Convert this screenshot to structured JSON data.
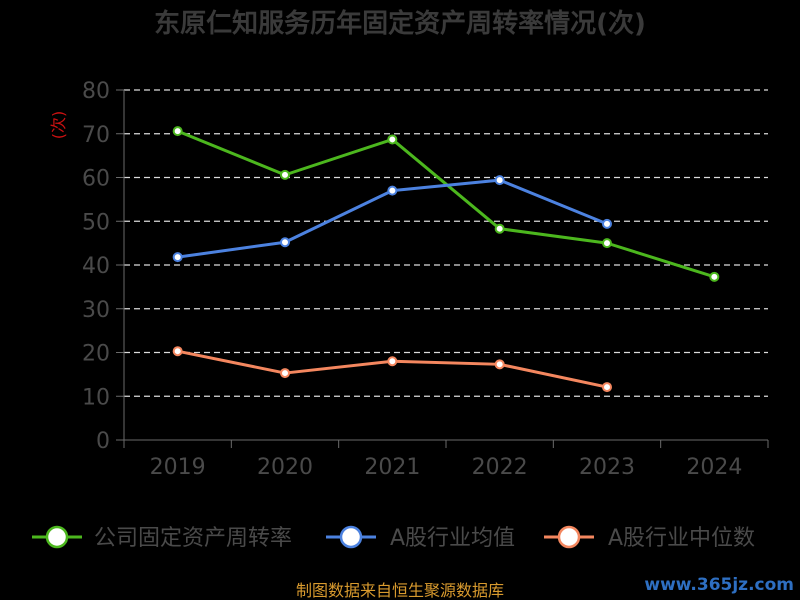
{
  "chart_data": {
    "type": "line",
    "title": "东原仁知服务历年固定资产周转率情况(次)",
    "ylabel": "(次)",
    "categories": [
      "2019",
      "2020",
      "2021",
      "2022",
      "2023",
      "2024"
    ],
    "ylim": [
      0,
      80
    ],
    "yticks": [
      0,
      10,
      20,
      30,
      40,
      50,
      60,
      70,
      80
    ],
    "grid": "dashed horizontal",
    "legend_position": "bottom",
    "series": [
      {
        "name": "公司固定资产周转率",
        "color": "#4cb71e",
        "values": [
          70.6,
          60.6,
          68.7,
          48.3,
          45.0,
          37.3
        ]
      },
      {
        "name": "A股行业均值",
        "color": "#4c82e0",
        "values": [
          41.8,
          45.2,
          57.0,
          59.4,
          49.4,
          null
        ]
      },
      {
        "name": "A股行业中位数",
        "color": "#f4875f",
        "values": [
          20.3,
          15.3,
          18.0,
          17.3,
          12.1,
          null
        ]
      }
    ]
  },
  "footer": {
    "source": "制图数据来自恒生聚源数据库",
    "watermark": "www.365jz.com"
  }
}
